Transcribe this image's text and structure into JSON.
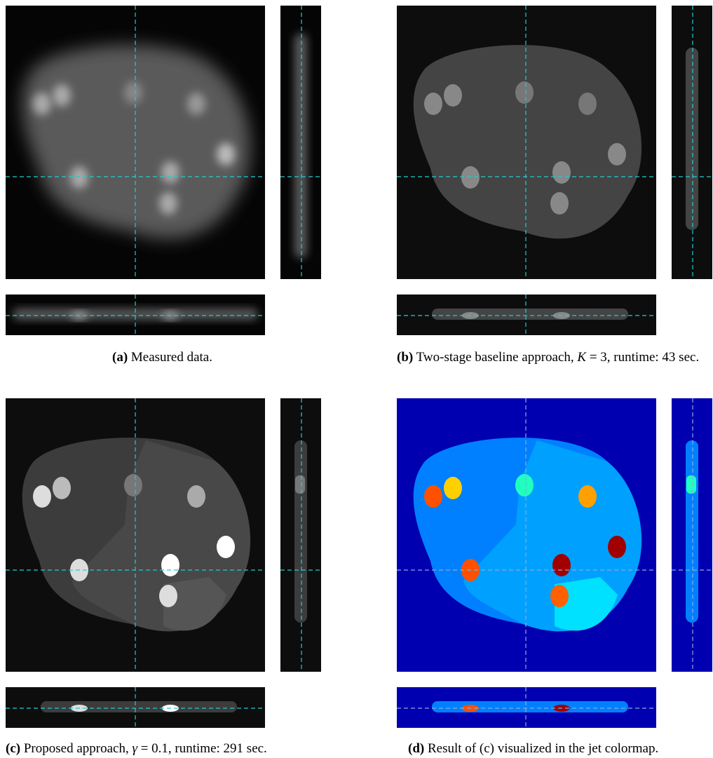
{
  "panels": [
    {
      "label": "(a)",
      "caption": [
        "Measured data."
      ]
    },
    {
      "label": "(b)",
      "caption": [
        "Two-stage baseline approach,",
        "K",
        "= 3, runtime: 43 sec."
      ]
    },
    {
      "label": "(c)",
      "caption": [
        "Proposed approach,",
        "γ",
        "= 0.1, runtime: 291 sec."
      ]
    },
    {
      "label": "(d)",
      "caption": [
        "Result of (c) visualized in the jet colormap."
      ]
    }
  ]
}
